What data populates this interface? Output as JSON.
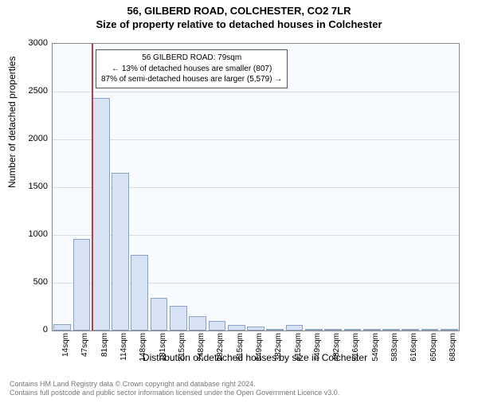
{
  "title_line1": "56, GILBERD ROAD, COLCHESTER, CO2 7LR",
  "title_line2": "Size of property relative to detached houses in Colchester",
  "y_axis_label": "Number of detached properties",
  "x_axis_label": "Distribution of detached houses by size in Colchester",
  "chart": {
    "type": "histogram",
    "background_color": "#f7faff",
    "grid_color": "#d8dde6",
    "bar_fill": "#d7e3f4",
    "bar_stroke": "#8aa4c8",
    "marker_color": "#c43a3a",
    "ylim_max": 3000,
    "yticks": [
      0,
      500,
      1000,
      1500,
      2000,
      2500,
      3000
    ],
    "xticks": [
      "14sqm",
      "47sqm",
      "81sqm",
      "114sqm",
      "148sqm",
      "181sqm",
      "215sqm",
      "248sqm",
      "282sqm",
      "315sqm",
      "349sqm",
      "382sqm",
      "415sqm",
      "449sqm",
      "482sqm",
      "516sqm",
      "549sqm",
      "583sqm",
      "616sqm",
      "650sqm",
      "683sqm"
    ],
    "values": [
      70,
      960,
      2430,
      1650,
      790,
      340,
      255,
      150,
      100,
      55,
      45,
      20,
      55,
      12,
      5,
      5,
      5,
      3,
      2,
      1,
      1
    ],
    "marker_index": 2
  },
  "infobox": {
    "line1": "56 GILBERD ROAD: 79sqm",
    "line2": "← 13% of detached houses are smaller (807)",
    "line3": "87% of semi-detached houses are larger (5,579) →"
  },
  "footer": {
    "line1": "Contains HM Land Registry data © Crown copyright and database right 2024.",
    "line2": "Contains full postcode and public sector information licensed under the Open Government Licence v3.0."
  }
}
